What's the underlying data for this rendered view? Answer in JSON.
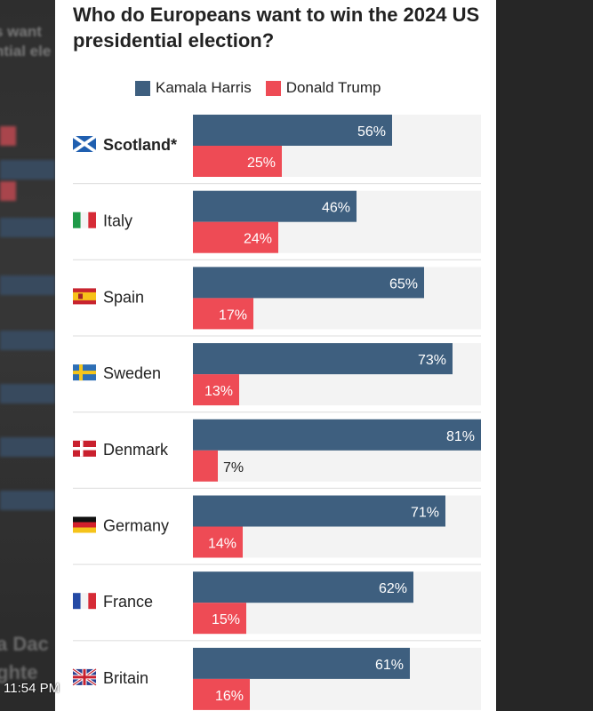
{
  "chart_data": {
    "type": "bar",
    "orientation": "horizontal",
    "title": "Who do Europeans want to win the 2024 US presidential election?",
    "categories": [
      "Scotland*",
      "Italy",
      "Spain",
      "Sweden",
      "Denmark",
      "Germany",
      "France",
      "Britain"
    ],
    "series": [
      {
        "name": "Kamala Harris",
        "color": "#3e5f7f",
        "values": [
          56,
          46,
          65,
          73,
          81,
          71,
          62,
          61
        ]
      },
      {
        "name": "Donald Trump",
        "color": "#ee4b55",
        "values": [
          25,
          24,
          17,
          13,
          7,
          14,
          15,
          16
        ]
      }
    ],
    "value_suffix": "%",
    "xlim": [
      0,
      81
    ],
    "legend_position": "top",
    "track_color": "#f3f3f3"
  },
  "flags": [
    "scotland",
    "italy",
    "spain",
    "sweden",
    "denmark",
    "germany",
    "france",
    "britain"
  ],
  "overlay": {
    "timestamp": "11:54 PM"
  }
}
